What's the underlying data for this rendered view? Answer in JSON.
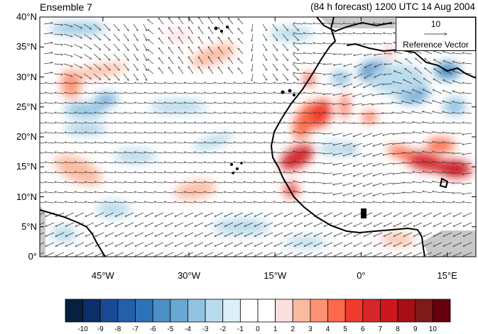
{
  "title_left": "Ensemble 7",
  "title_right": "(84 h forecast) 1200 UTC 14 Aug 2004",
  "reference_vector": {
    "value": "10",
    "label": "Reference Vector"
  },
  "y_axis_labels": [
    "40°N",
    "35°N",
    "30°N",
    "25°N",
    "20°N",
    "15°N",
    "10°N",
    "5°N",
    "0°"
  ],
  "x_axis_labels": [
    "45°W",
    "30°W",
    "15°W",
    "0°",
    "15°E"
  ],
  "colorbar": {
    "labels": [
      "-10",
      "-9",
      "-8",
      "-7",
      "-6",
      "-5",
      "-4",
      "-3",
      "-2",
      "-1",
      "0",
      "1",
      "2",
      "3",
      "4",
      "5",
      "6",
      "7",
      "8",
      "9",
      "10"
    ],
    "colors": [
      "#08203f",
      "#0a2f6b",
      "#1a4a96",
      "#2460a8",
      "#2d73b8",
      "#4a90c6",
      "#6aa8d4",
      "#92c3e0",
      "#b9dcec",
      "#ddf0f8",
      "#ffffff",
      "#ffffff",
      "#fde0dd",
      "#fcbba1",
      "#fc9272",
      "#fb6a4a",
      "#ef3b2c",
      "#d7262a",
      "#cb181d",
      "#a50f15",
      "#7f1a1a",
      "#67000d"
    ]
  },
  "map_extent": {
    "lon_min": -56,
    "lon_max": 20,
    "lat_min": 0,
    "lat_max": 40
  }
}
